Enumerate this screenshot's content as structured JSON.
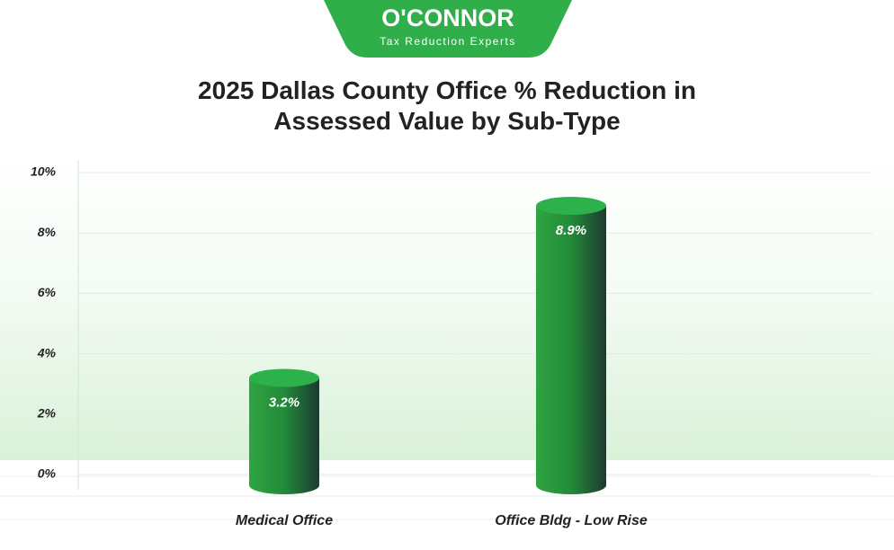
{
  "logo": {
    "name": "O'CONNOR",
    "tagline": "Tax Reduction Experts"
  },
  "chart_data": {
    "type": "bar",
    "title": "2025 Dallas County Office % Reduction in Assessed Value by Sub-Type",
    "categories": [
      "Medical Office",
      "Office Bldg - Low Rise"
    ],
    "values": [
      3.2,
      8.9
    ],
    "value_labels": [
      "3.2%",
      "8.9%"
    ],
    "color": "#2a9a3a",
    "ylim": [
      0,
      10
    ],
    "yticks": [
      {
        "value": 0,
        "label": "0%"
      },
      {
        "value": 2,
        "label": "2%"
      },
      {
        "value": 4,
        "label": "4%"
      },
      {
        "value": 6,
        "label": "6%"
      },
      {
        "value": 8,
        "label": "8%"
      },
      {
        "value": 10,
        "label": "10%"
      }
    ],
    "grid": true
  }
}
